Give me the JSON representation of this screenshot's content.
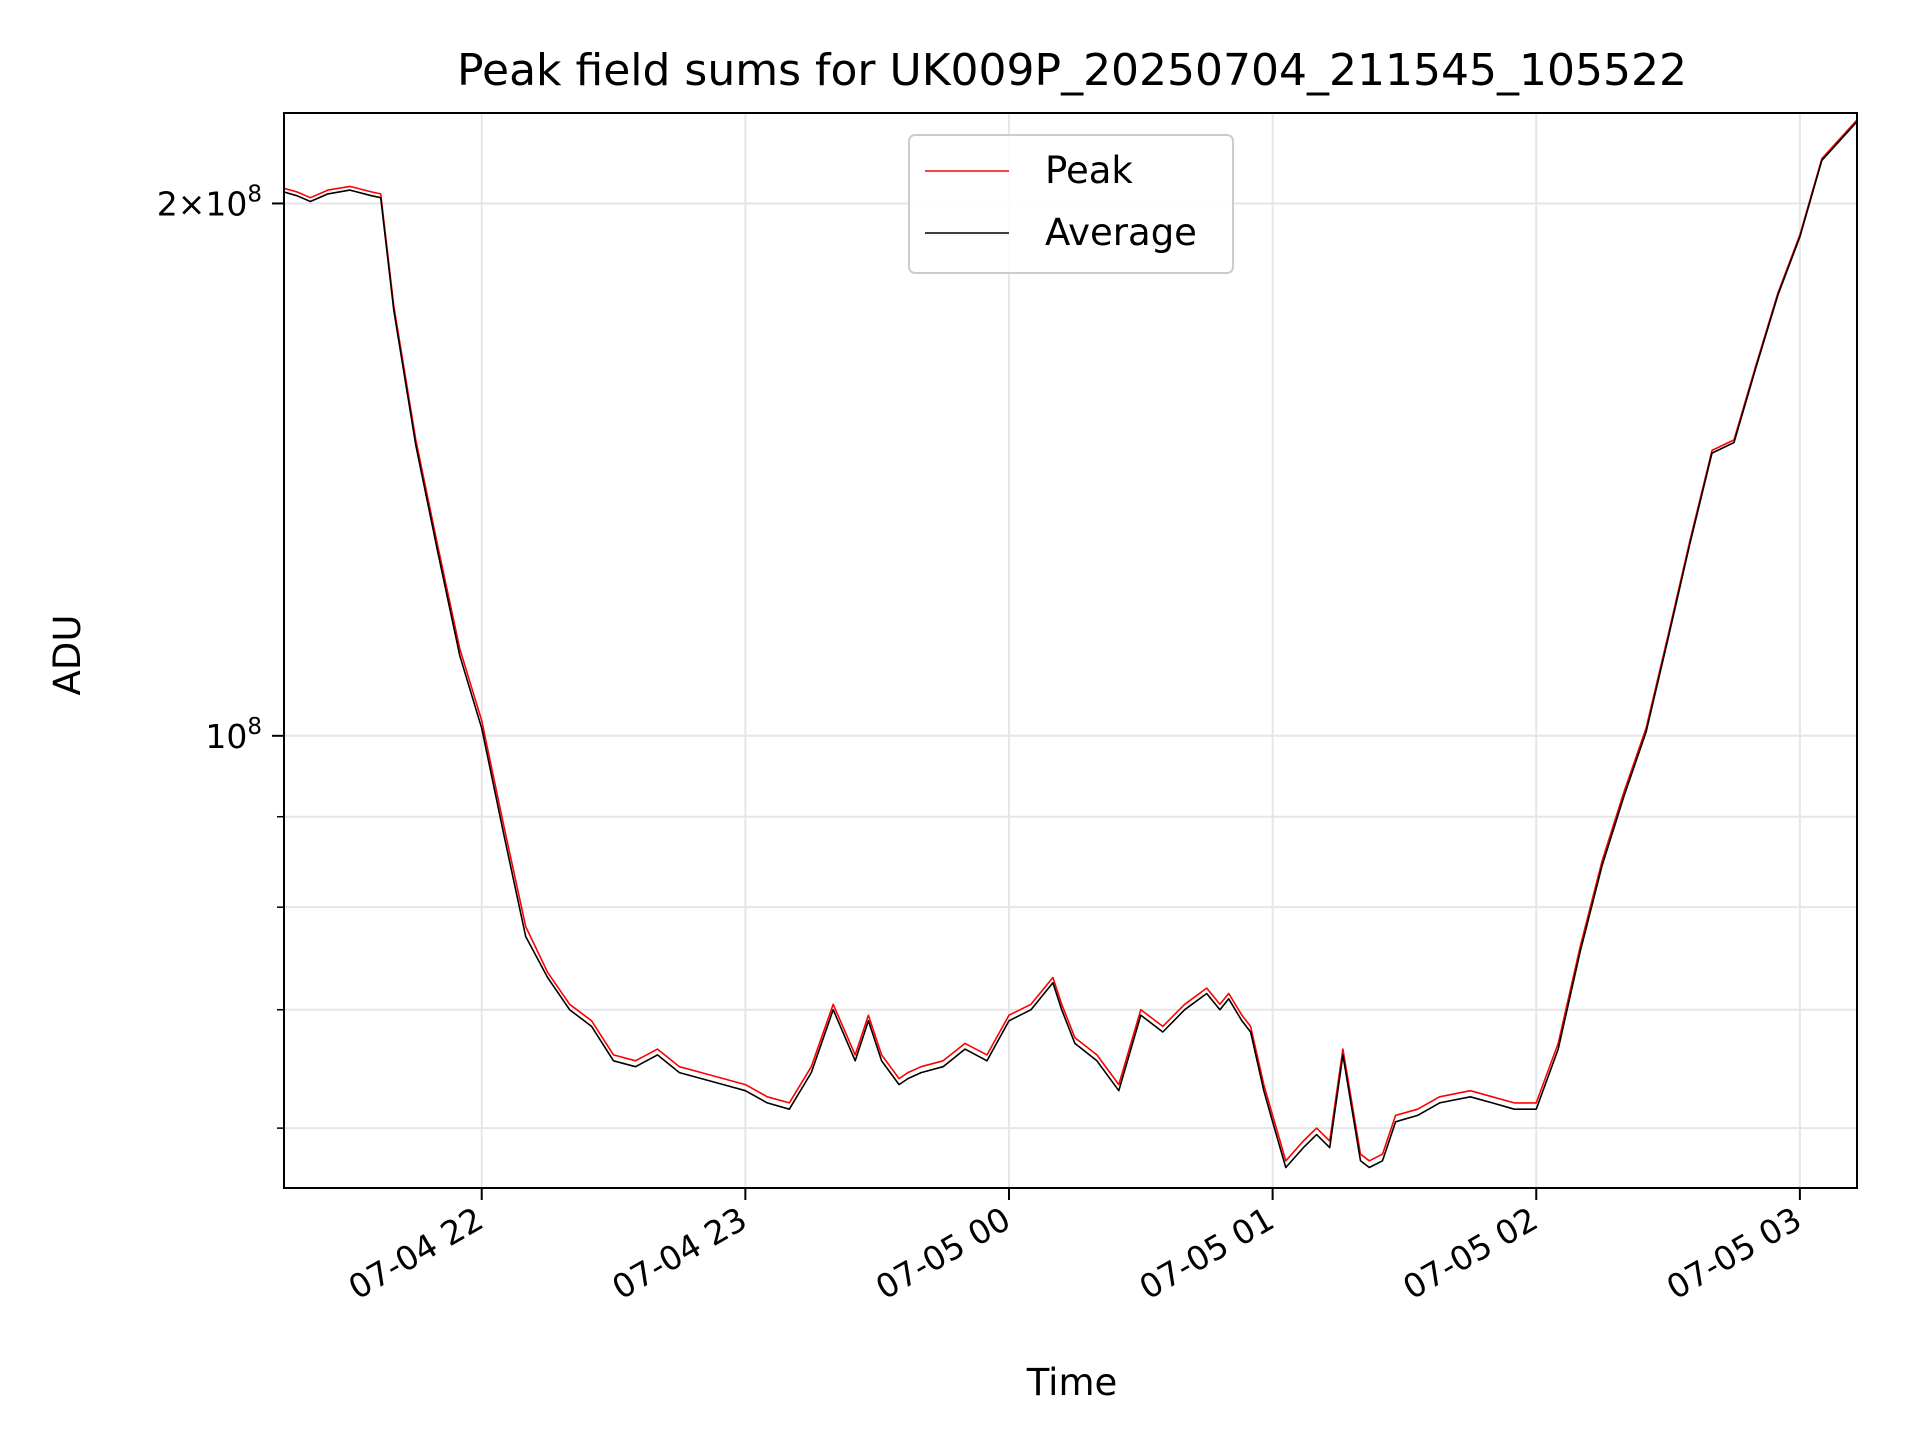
{
  "chart_data": {
    "type": "line",
    "title": "Peak field sums for UK009P_20250704_211545_105522",
    "xlabel": "Time",
    "ylabel": "ADU",
    "yscale": "log",
    "xlim": [
      "2025-07-04 21:15",
      "2025-07-05 03:13"
    ],
    "ylim": [
      55500000,
      225000000
    ],
    "grid": true,
    "legend_position": "top-center",
    "x_ticks": [
      {
        "time": "2025-07-04 22:00",
        "label": "07-04 22"
      },
      {
        "time": "2025-07-04 23:00",
        "label": "07-04 23"
      },
      {
        "time": "2025-07-05 00:00",
        "label": "07-05 00"
      },
      {
        "time": "2025-07-05 01:00",
        "label": "07-05 01"
      },
      {
        "time": "2025-07-05 02:00",
        "label": "07-05 02"
      },
      {
        "time": "2025-07-05 03:00",
        "label": "07-05 03"
      }
    ],
    "y_major_ticks": [
      {
        "value": 100000000,
        "mantissa": "",
        "exponent": "8"
      },
      {
        "value": 200000000,
        "mantissa": "2",
        "exponent": "8"
      }
    ],
    "y_minor_ticks": [
      60000000,
      70000000,
      80000000,
      90000000
    ],
    "series": [
      {
        "name": "Peak",
        "color": "#ff0000",
        "x": [
          "2025-07-04 21:15",
          "2025-07-04 21:18",
          "2025-07-04 21:21",
          "2025-07-04 21:25",
          "2025-07-04 21:30",
          "2025-07-04 21:35",
          "2025-07-04 21:37",
          "2025-07-04 21:40",
          "2025-07-04 21:45",
          "2025-07-04 21:50",
          "2025-07-04 21:55",
          "2025-07-04 22:00",
          "2025-07-04 22:05",
          "2025-07-04 22:10",
          "2025-07-04 22:15",
          "2025-07-04 22:20",
          "2025-07-04 22:25",
          "2025-07-04 22:30",
          "2025-07-04 22:35",
          "2025-07-04 22:40",
          "2025-07-04 22:45",
          "2025-07-04 22:50",
          "2025-07-04 22:55",
          "2025-07-04 23:00",
          "2025-07-04 23:05",
          "2025-07-04 23:10",
          "2025-07-04 23:15",
          "2025-07-04 23:20",
          "2025-07-04 23:25",
          "2025-07-04 23:28",
          "2025-07-04 23:31",
          "2025-07-04 23:35",
          "2025-07-04 23:37",
          "2025-07-04 23:40",
          "2025-07-04 23:45",
          "2025-07-04 23:50",
          "2025-07-04 23:55",
          "2025-07-05 00:00",
          "2025-07-05 00:05",
          "2025-07-05 00:10",
          "2025-07-05 00:12",
          "2025-07-05 00:15",
          "2025-07-05 00:20",
          "2025-07-05 00:25",
          "2025-07-05 00:30",
          "2025-07-05 00:35",
          "2025-07-05 00:40",
          "2025-07-05 00:45",
          "2025-07-05 00:48",
          "2025-07-05 00:50",
          "2025-07-05 00:53",
          "2025-07-05 00:55",
          "2025-07-05 00:58",
          "2025-07-05 01:00",
          "2025-07-05 01:03",
          "2025-07-05 01:07",
          "2025-07-05 01:10",
          "2025-07-05 01:13",
          "2025-07-05 01:16",
          "2025-07-05 01:20",
          "2025-07-05 01:22",
          "2025-07-05 01:25",
          "2025-07-05 01:28",
          "2025-07-05 01:33",
          "2025-07-05 01:38",
          "2025-07-05 01:45",
          "2025-07-05 01:50",
          "2025-07-05 01:55",
          "2025-07-05 02:00",
          "2025-07-05 02:05",
          "2025-07-05 02:10",
          "2025-07-05 02:15",
          "2025-07-05 02:20",
          "2025-07-05 02:25",
          "2025-07-05 02:30",
          "2025-07-05 02:35",
          "2025-07-05 02:40",
          "2025-07-05 02:45",
          "2025-07-05 02:50",
          "2025-07-05 02:55",
          "2025-07-05 03:00",
          "2025-07-05 03:05",
          "2025-07-05 03:13"
        ],
        "y": [
          204000000,
          203000000,
          201500000,
          203500000,
          204500000,
          203000000,
          202500000,
          175000000,
          147000000,
          128000000,
          112000000,
          102000000,
          89000000,
          78000000,
          73500000,
          70500000,
          69000000,
          66000000,
          65500000,
          66500000,
          65000000,
          64500000,
          64000000,
          63500000,
          62500000,
          62000000,
          65000000,
          70500000,
          66000000,
          69500000,
          66000000,
          64000000,
          64500000,
          65000000,
          65500000,
          67000000,
          66000000,
          69500000,
          70500000,
          73000000,
          70500000,
          67500000,
          66000000,
          63500000,
          70000000,
          68500000,
          70500000,
          72000000,
          70500000,
          71500000,
          69500000,
          68500000,
          63500000,
          61000000,
          57500000,
          59000000,
          60000000,
          59000000,
          66500000,
          58000000,
          57500000,
          58000000,
          61000000,
          61500000,
          62500000,
          63000000,
          62500000,
          62000000,
          62000000,
          67000000,
          76000000,
          85000000,
          93000000,
          101000000,
          114000000,
          129000000,
          145000000,
          147000000,
          162000000,
          178000000,
          192000000,
          212000000,
          223000000
        ]
      },
      {
        "name": "Average",
        "color": "#000000",
        "x": [
          "2025-07-04 21:15",
          "2025-07-04 21:18",
          "2025-07-04 21:21",
          "2025-07-04 21:25",
          "2025-07-04 21:30",
          "2025-07-04 21:35",
          "2025-07-04 21:37",
          "2025-07-04 21:40",
          "2025-07-04 21:45",
          "2025-07-04 21:50",
          "2025-07-04 21:55",
          "2025-07-04 22:00",
          "2025-07-04 22:05",
          "2025-07-04 22:10",
          "2025-07-04 22:15",
          "2025-07-04 22:20",
          "2025-07-04 22:25",
          "2025-07-04 22:30",
          "2025-07-04 22:35",
          "2025-07-04 22:40",
          "2025-07-04 22:45",
          "2025-07-04 22:50",
          "2025-07-04 22:55",
          "2025-07-04 23:00",
          "2025-07-04 23:05",
          "2025-07-04 23:10",
          "2025-07-04 23:15",
          "2025-07-04 23:20",
          "2025-07-04 23:25",
          "2025-07-04 23:28",
          "2025-07-04 23:31",
          "2025-07-04 23:35",
          "2025-07-04 23:37",
          "2025-07-04 23:40",
          "2025-07-04 23:45",
          "2025-07-04 23:50",
          "2025-07-04 23:55",
          "2025-07-05 00:00",
          "2025-07-05 00:05",
          "2025-07-05 00:10",
          "2025-07-05 00:12",
          "2025-07-05 00:15",
          "2025-07-05 00:20",
          "2025-07-05 00:25",
          "2025-07-05 00:30",
          "2025-07-05 00:35",
          "2025-07-05 00:40",
          "2025-07-05 00:45",
          "2025-07-05 00:48",
          "2025-07-05 00:50",
          "2025-07-05 00:53",
          "2025-07-05 00:55",
          "2025-07-05 00:58",
          "2025-07-05 01:00",
          "2025-07-05 01:03",
          "2025-07-05 01:07",
          "2025-07-05 01:10",
          "2025-07-05 01:13",
          "2025-07-05 01:16",
          "2025-07-05 01:20",
          "2025-07-05 01:22",
          "2025-07-05 01:25",
          "2025-07-05 01:28",
          "2025-07-05 01:33",
          "2025-07-05 01:38",
          "2025-07-05 01:45",
          "2025-07-05 01:50",
          "2025-07-05 01:55",
          "2025-07-05 02:00",
          "2025-07-05 02:05",
          "2025-07-05 02:10",
          "2025-07-05 02:15",
          "2025-07-05 02:20",
          "2025-07-05 02:25",
          "2025-07-05 02:30",
          "2025-07-05 02:35",
          "2025-07-05 02:40",
          "2025-07-05 02:45",
          "2025-07-05 02:50",
          "2025-07-05 02:55",
          "2025-07-05 03:00",
          "2025-07-05 03:05",
          "2025-07-05 03:13"
        ],
        "y": [
          203000000,
          202000000,
          200500000,
          202500000,
          203500000,
          202000000,
          201500000,
          174000000,
          146000000,
          127000000,
          111000000,
          101000000,
          88000000,
          77000000,
          73000000,
          70000000,
          68500000,
          65500000,
          65000000,
          66000000,
          64500000,
          64000000,
          63500000,
          63000000,
          62000000,
          61500000,
          64500000,
          70000000,
          65500000,
          69000000,
          65500000,
          63500000,
          64000000,
          64500000,
          65000000,
          66500000,
          65500000,
          69000000,
          70000000,
          72500000,
          70000000,
          67000000,
          65500000,
          63000000,
          69500000,
          68000000,
          70000000,
          71500000,
          70000000,
          71000000,
          69000000,
          68000000,
          63000000,
          60500000,
          57000000,
          58500000,
          59500000,
          58500000,
          66000000,
          57500000,
          57000000,
          57500000,
          60500000,
          61000000,
          62000000,
          62500000,
          62000000,
          61500000,
          61500000,
          66500000,
          75500000,
          84500000,
          92500000,
          100500000,
          113500000,
          128500000,
          144500000,
          146500000,
          161500000,
          177500000,
          191500000,
          211500000,
          222500000
        ]
      }
    ]
  }
}
